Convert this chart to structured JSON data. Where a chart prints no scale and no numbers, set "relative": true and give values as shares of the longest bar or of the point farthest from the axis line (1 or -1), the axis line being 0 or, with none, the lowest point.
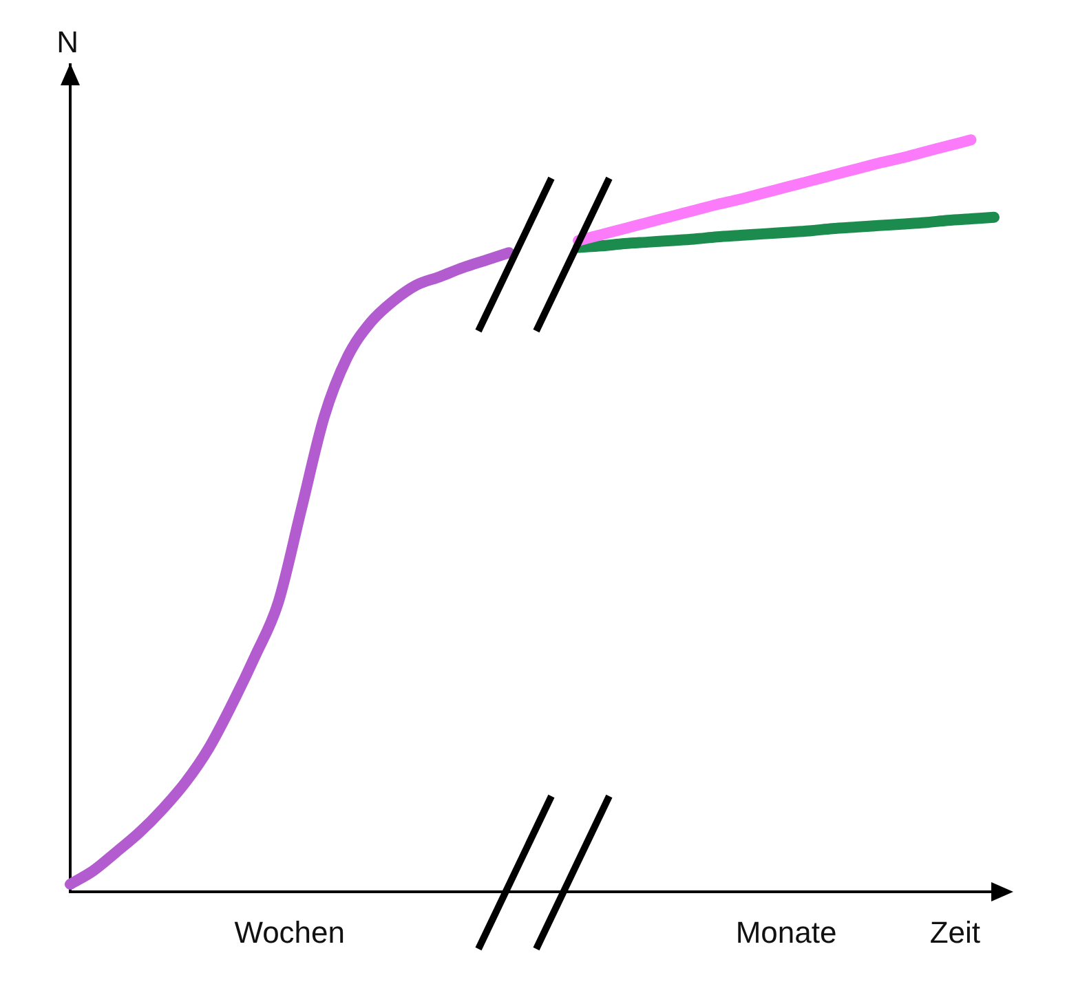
{
  "chart_data": {
    "type": "line",
    "relative": true,
    "xlabel": "Zeit",
    "ylabel": "N",
    "annotations": [
      "Wochen",
      "Monate"
    ],
    "marker": "none",
    "line_style": "solid",
    "categories": [
      null,
      null,
      null,
      null,
      null,
      null,
      null,
      null,
      null,
      null,
      null,
      null,
      null,
      null,
      null,
      null,
      null,
      null,
      null,
      null,
      null,
      null,
      null,
      null,
      null,
      null,
      null,
      null,
      null,
      null,
      null,
      null,
      null,
      null,
      null,
      null,
      null,
      null,
      null,
      null,
      null
    ],
    "series": [
      {
        "color": "#b25ccf",
        "values": [
          0.01,
          0.028,
          0.053,
          0.079,
          0.11,
          0.146,
          0.191,
          0.249,
          0.313,
          0.384,
          0.508,
          0.632,
          0.711,
          0.757,
          0.786,
          0.807,
          0.818,
          0.83,
          0.84,
          0.85,
          null,
          null,
          null,
          null,
          null,
          null,
          null,
          null,
          null,
          null,
          null,
          null,
          null,
          null,
          null,
          null,
          null,
          null,
          null,
          null,
          null
        ]
      },
      {
        "color": "#fb7bfb",
        "values": [
          null,
          null,
          null,
          null,
          null,
          null,
          null,
          null,
          null,
          null,
          null,
          null,
          null,
          null,
          null,
          null,
          null,
          null,
          null,
          null,
          null,
          null,
          0.866,
          0.874,
          0.882,
          0.89,
          0.898,
          0.906,
          0.914,
          0.921,
          0.929,
          0.937,
          0.945,
          0.953,
          0.961,
          0.969,
          0.976,
          0.984,
          0.992,
          1.0,
          null
        ]
      },
      {
        "color": "#1b8c4e",
        "values": [
          null,
          null,
          null,
          null,
          null,
          null,
          null,
          null,
          null,
          null,
          null,
          null,
          null,
          null,
          null,
          null,
          null,
          null,
          null,
          null,
          null,
          null,
          0.857,
          0.859,
          0.862,
          0.864,
          0.866,
          0.868,
          0.871,
          0.873,
          0.875,
          0.877,
          0.879,
          0.882,
          0.884,
          0.886,
          0.888,
          0.89,
          0.893,
          0.895,
          0.897
        ]
      }
    ]
  }
}
